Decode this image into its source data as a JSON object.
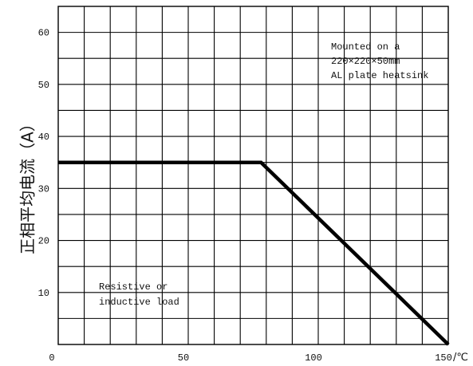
{
  "chart_data": {
    "type": "line",
    "title": "",
    "xlabel": "",
    "ylabel": "正相平均电流（A）",
    "x_unit": "/℃",
    "xlim": [
      0,
      150
    ],
    "ylim": [
      0,
      65
    ],
    "x_ticks": [
      "0",
      "50",
      "100",
      "150"
    ],
    "y_ticks": [
      "10",
      "20",
      "30",
      "40",
      "50",
      "60"
    ],
    "grid": true,
    "series": [
      {
        "x": [
          0,
          78,
          150
        ],
        "y": [
          35,
          35,
          0
        ]
      }
    ],
    "annotations": {
      "mounting": [
        "Mounted on a",
        "220×220×50mm",
        "AL plate heatsink"
      ],
      "load": [
        "Resistive or",
        "inductive load"
      ]
    }
  }
}
